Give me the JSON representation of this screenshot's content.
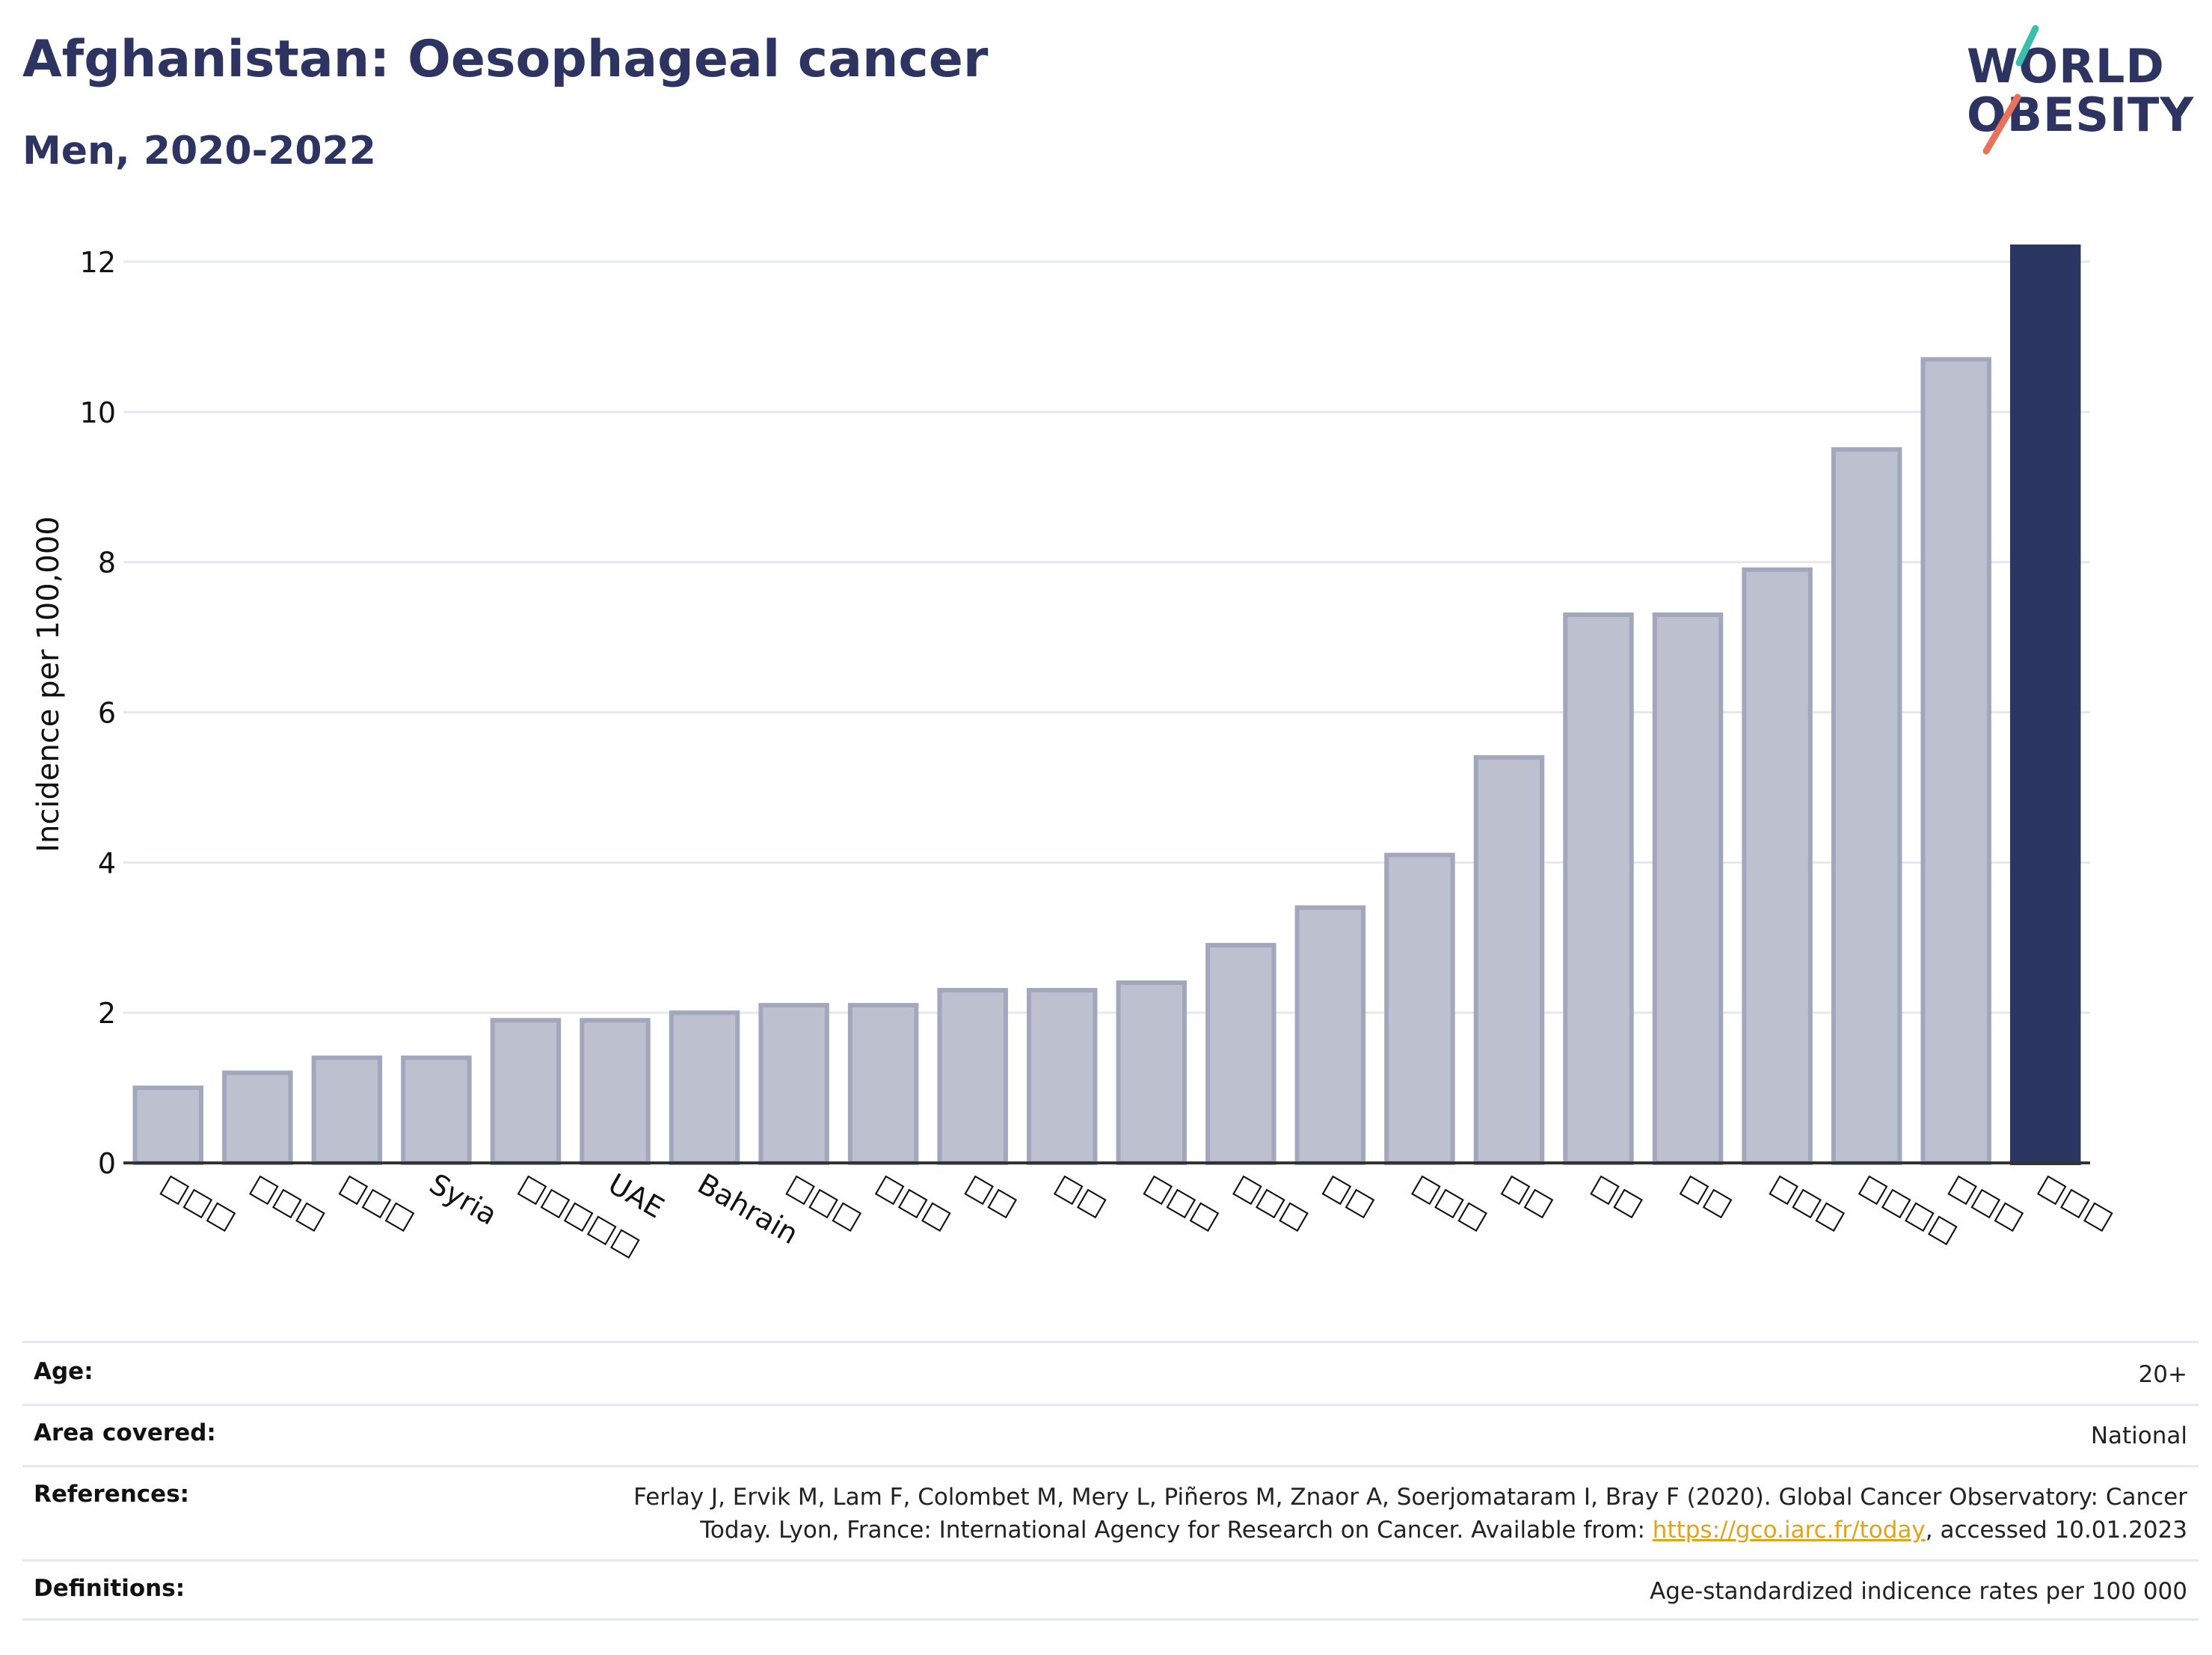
{
  "header": {
    "title": "Afghanistan: Oesophageal cancer",
    "subtitle": "Men, 2020-2022"
  },
  "logo": {
    "line1": "WORLD",
    "line2": "OBESITY",
    "stroke_colors": [
      "#3bbfad",
      "#e8735a"
    ]
  },
  "chart_data": {
    "type": "bar",
    "ylabel": "Incidence per 100,000",
    "xlabel": "",
    "ylim": [
      0,
      12
    ],
    "yticks": [
      0,
      2,
      4,
      6,
      8,
      10,
      12
    ],
    "grid": true,
    "categories": [
      "□□□",
      "□□□",
      "□□□",
      "Syria",
      "□□□□□",
      "UAE",
      "Bahrain",
      "□□□",
      "□□□",
      "□□",
      "□□",
      "□□□",
      "□□□",
      "□□",
      "□□□",
      "□□",
      "□□",
      "□□",
      "□□□",
      "□□□□",
      "□□□",
      "□□□"
    ],
    "values": [
      1.0,
      1.2,
      1.4,
      1.4,
      1.9,
      1.9,
      2.0,
      2.1,
      2.1,
      2.3,
      2.3,
      2.4,
      2.9,
      3.4,
      4.1,
      5.4,
      7.3,
      7.3,
      7.9,
      9.5,
      10.7,
      12.2
    ],
    "highlight_index": 21,
    "colors": {
      "bar": "#bdc0cf",
      "bar_edge": "#a2a7bd",
      "highlight": "#2b3561",
      "grid": "#e6e8ef",
      "axis": "#333333"
    }
  },
  "meta": {
    "age_label": "Age:",
    "age_value": "20+",
    "area_label": "Area covered:",
    "area_value": "National",
    "refs_label": "References:",
    "refs_line1": "Ferlay J, Ervik M, Lam F, Colombet M, Mery L, Piñeros M, Znaor A, Soerjomataram I, Bray F (2020). Global Cancer Observatory: Cancer",
    "refs_line2_pre": "Today. Lyon, France: International Agency for Research on Cancer. Available from: ",
    "refs_link": "https://gco.iarc.fr/today",
    "refs_line2_post": ", accessed 10.01.2023",
    "defs_label": "Definitions:",
    "defs_value": "Age-standardized indicence rates per 100 000"
  }
}
